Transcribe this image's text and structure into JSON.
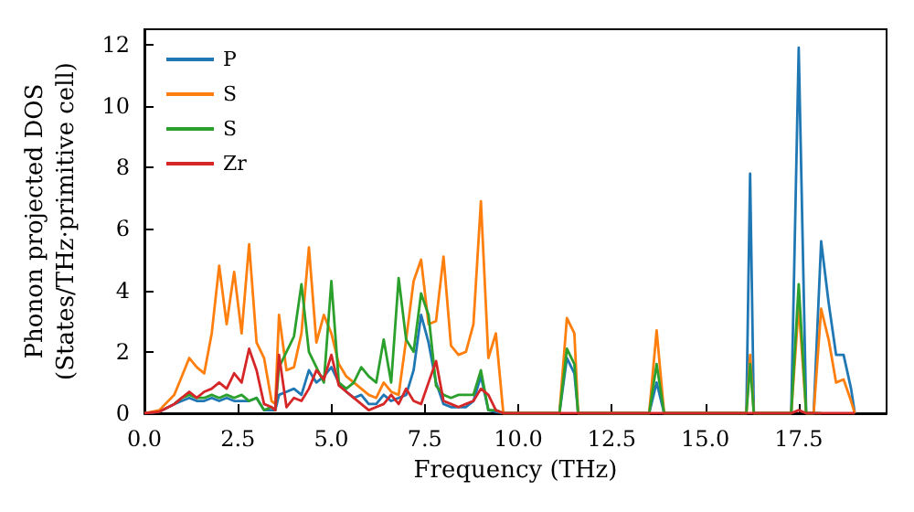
{
  "chart_data": {
    "type": "line",
    "xlabel": "Frequency (THz)",
    "ylabel": "Phonon projected DOS\n(States/THz·primitive cell)",
    "x": [
      0,
      0.4,
      0.8,
      1.0,
      1.2,
      1.4,
      1.6,
      1.8,
      2.0,
      2.2,
      2.4,
      2.6,
      2.8,
      3.0,
      3.2,
      3.4,
      3.5,
      3.6,
      3.8,
      4.0,
      4.2,
      4.4,
      4.6,
      4.8,
      5.0,
      5.2,
      5.4,
      5.6,
      5.8,
      6.0,
      6.2,
      6.4,
      6.6,
      6.8,
      7.0,
      7.2,
      7.4,
      7.6,
      7.8,
      8.0,
      8.2,
      8.4,
      8.6,
      8.8,
      9.0,
      9.2,
      9.4,
      9.6,
      11.1,
      11.3,
      11.5,
      11.6,
      13.5,
      13.7,
      13.9,
      16.1,
      16.2,
      16.3,
      17.3,
      17.5,
      17.7,
      17.9,
      18.1,
      18.3,
      18.5,
      18.7,
      18.9,
      19.0
    ],
    "series": [
      {
        "name": "P",
        "color": "#1f77b4",
        "values": [
          0,
          0.05,
          0.3,
          0.4,
          0.5,
          0.4,
          0.4,
          0.5,
          0.4,
          0.5,
          0.4,
          0.4,
          0.4,
          0.5,
          0.1,
          0.1,
          0.1,
          0.6,
          0.7,
          0.8,
          0.6,
          1.4,
          1.0,
          1.2,
          1.5,
          1.0,
          0.7,
          0.5,
          0.6,
          0.3,
          0.3,
          0.6,
          0.4,
          0.5,
          0.6,
          1.4,
          3.2,
          2.3,
          1.0,
          0.3,
          0.2,
          0.2,
          0.2,
          0.4,
          1.2,
          0.1,
          0.05,
          0,
          0,
          1.8,
          1.3,
          0,
          0,
          1.0,
          0,
          0,
          7.8,
          0,
          0,
          11.9,
          0,
          0,
          5.6,
          3.6,
          1.9,
          1.9,
          0.8,
          0
        ]
      },
      {
        "name": "S",
        "color": "#ff7f0e",
        "values": [
          0,
          0.1,
          0.6,
          1.2,
          1.8,
          1.5,
          1.3,
          2.6,
          4.8,
          2.9,
          4.6,
          2.6,
          5.5,
          2.3,
          1.8,
          0.4,
          0.3,
          3.2,
          1.4,
          1.5,
          2.6,
          5.4,
          2.3,
          3.2,
          2.6,
          1.6,
          1.2,
          1.0,
          0.8,
          0.6,
          0.5,
          1.0,
          0.7,
          0.6,
          2.4,
          4.3,
          5.0,
          2.9,
          3.0,
          5.1,
          2.2,
          1.9,
          2.0,
          2.9,
          6.9,
          1.8,
          2.6,
          0,
          0,
          3.1,
          2.6,
          0,
          0,
          2.7,
          0,
          0,
          1.9,
          0,
          0,
          3.5,
          0,
          0,
          3.4,
          2.4,
          1.0,
          1.1,
          0.4,
          0
        ]
      },
      {
        "name": "S",
        "color": "#2ca02c",
        "values": [
          null,
          null,
          0.3,
          0.5,
          0.6,
          0.5,
          0.5,
          0.6,
          0.5,
          0.6,
          0.5,
          0.6,
          0.4,
          0.5,
          0.1,
          0.2,
          0.1,
          1.5,
          2.0,
          2.5,
          4.2,
          2.0,
          1.5,
          1.0,
          4.3,
          1.0,
          0.8,
          1.0,
          1.5,
          1.2,
          1.0,
          2.4,
          1.0,
          4.4,
          2.4,
          2.0,
          3.9,
          3.2,
          0.9,
          0.6,
          0.5,
          0.6,
          0.6,
          0.6,
          1.4,
          0.1,
          0.1,
          0,
          0,
          2.1,
          1.6,
          0,
          0,
          1.6,
          0,
          0,
          1.6,
          0,
          0,
          4.2,
          0,
          0,
          0,
          null,
          null,
          null,
          null,
          null
        ]
      },
      {
        "name": "Zr",
        "color": "#d62728",
        "values": [
          0,
          0.05,
          0.3,
          0.5,
          0.7,
          0.5,
          0.7,
          0.8,
          1.0,
          0.8,
          1.3,
          1.0,
          2.1,
          1.4,
          0.3,
          0.2,
          0.1,
          1.9,
          0.2,
          0.5,
          0.4,
          0.8,
          1.4,
          1.1,
          1.9,
          0.9,
          0.7,
          0.5,
          0.3,
          0.1,
          0.2,
          0.3,
          0.6,
          0.3,
          0.8,
          0.4,
          0.3,
          1.0,
          1.7,
          0.4,
          0.3,
          0.2,
          0.3,
          0.4,
          0.8,
          0.6,
          0.1,
          0,
          0,
          0,
          0,
          0,
          0,
          0,
          0,
          0,
          0,
          0,
          0,
          0.1,
          0,
          0,
          0,
          0,
          0,
          0,
          0,
          0
        ]
      }
    ],
    "xlim": [
      0,
      19.85
    ],
    "xticks": [
      {
        "value": 0,
        "label": "0.0"
      },
      {
        "value": 2.5,
        "label": "2.5"
      },
      {
        "value": 5,
        "label": "5.0"
      },
      {
        "value": 7.5,
        "label": "7.5"
      },
      {
        "value": 10,
        "label": "10.0"
      },
      {
        "value": 12.5,
        "label": "12.5"
      },
      {
        "value": 15,
        "label": "15.0"
      },
      {
        "value": 17.5,
        "label": "17.5"
      }
    ],
    "ylim": [
      0,
      12.5
    ],
    "yticks": [
      0,
      2,
      4,
      6,
      8,
      10,
      12
    ],
    "grid": false,
    "legend": "top left"
  }
}
